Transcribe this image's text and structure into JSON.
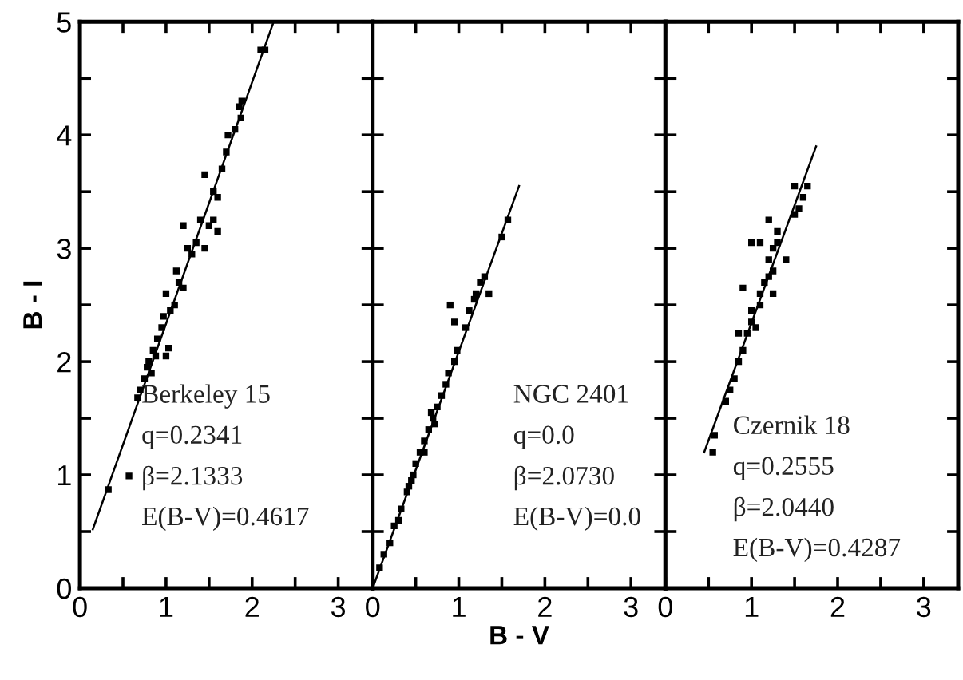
{
  "chart_data": [
    {
      "type": "scatter",
      "ylabel": "B - I",
      "xlim": [
        0,
        3.4
      ],
      "ylim": [
        0,
        5
      ],
      "xticks": [
        0,
        {
          "value": 0.5,
          "label": null
        },
        1,
        {
          "value": 1.5,
          "label": null
        },
        2,
        {
          "value": 2.5,
          "label": null
        },
        3
      ],
      "yticks": [
        0,
        {
          "value": 0.5,
          "label": null
        },
        1,
        {
          "value": 1.5,
          "label": null
        },
        2,
        {
          "value": 2.5,
          "label": null
        },
        3,
        {
          "value": 3.5,
          "label": null
        },
        4,
        {
          "value": 4.5,
          "label": null
        },
        5
      ],
      "marker": "square",
      "grid": false,
      "annotations": [
        "Berkeley 15",
        "q=0.2341",
        "β=2.1333",
        "E(B-V)=0.4617"
      ],
      "series": [
        {
          "color": "#000000",
          "x": [
            0.33,
            0.57,
            0.67,
            0.7,
            0.75,
            0.78,
            0.8,
            0.83,
            0.85,
            0.88,
            0.9,
            0.95,
            0.97,
            1.0,
            1.03,
            1.0,
            1.05,
            1.1,
            1.12,
            1.15,
            1.2,
            1.2,
            1.25,
            1.3,
            1.35,
            1.4,
            1.45,
            1.5,
            1.55,
            1.6,
            1.45,
            1.55,
            1.6,
            1.65,
            1.7,
            1.72,
            1.8,
            1.85,
            1.88,
            1.87,
            2.1,
            2.15
          ],
          "values": [
            0.87,
            0.99,
            1.68,
            1.75,
            1.85,
            1.95,
            2.0,
            1.9,
            2.1,
            2.05,
            2.2,
            2.3,
            2.4,
            2.05,
            2.12,
            2.6,
            2.45,
            2.5,
            2.8,
            2.7,
            2.65,
            3.2,
            3.0,
            2.95,
            3.05,
            3.25,
            3.0,
            3.2,
            3.25,
            3.15,
            3.65,
            3.5,
            3.45,
            3.7,
            3.85,
            4.0,
            4.05,
            4.25,
            4.3,
            4.15,
            4.75,
            4.75
          ]
        },
        {
          "type": "line",
          "marker": "none",
          "color": "#000000",
          "x": [
            0.15,
            2.25
          ],
          "values": [
            0.52,
            5.0
          ]
        }
      ]
    },
    {
      "type": "scatter",
      "xlabel": "B - V",
      "xlim": [
        0,
        3.4
      ],
      "ylim": [
        0,
        5
      ],
      "tick_labels": "x",
      "xticks": [
        0,
        {
          "value": 0.5,
          "label": null
        },
        1,
        {
          "value": 1.5,
          "label": null
        },
        2,
        {
          "value": 2.5,
          "label": null
        },
        3
      ],
      "yticks": [
        0,
        {
          "value": 0.5,
          "label": null
        },
        1,
        {
          "value": 1.5,
          "label": null
        },
        2,
        {
          "value": 2.5,
          "label": null
        },
        3,
        {
          "value": 3.5,
          "label": null
        },
        4,
        {
          "value": 4.5,
          "label": null
        },
        5
      ],
      "marker": "square",
      "grid": false,
      "annotations": [
        "NGC 2401",
        "q=0.0",
        "β=2.0730",
        "E(B-V)=0.0"
      ],
      "series": [
        {
          "color": "#000000",
          "x": [
            0.13,
            0.2,
            0.25,
            0.33,
            0.4,
            0.47,
            0.5,
            0.55,
            0.45,
            0.6,
            0.65,
            0.7,
            0.72,
            0.75,
            0.8,
            0.85,
            0.88,
            0.98,
            0.95,
            1.08,
            1.12,
            1.18,
            0.9,
            0.95,
            1.2,
            1.25,
            1.35,
            1.3,
            1.5,
            1.57,
            0.08,
            0.3,
            0.42,
            0.6,
            0.68
          ],
          "values": [
            0.3,
            0.4,
            0.55,
            0.7,
            0.85,
            1.0,
            1.1,
            1.2,
            0.95,
            1.3,
            1.4,
            1.5,
            1.45,
            1.6,
            1.7,
            1.8,
            1.9,
            2.1,
            2.0,
            2.3,
            2.45,
            2.55,
            2.5,
            2.35,
            2.6,
            2.7,
            2.6,
            2.75,
            3.1,
            3.25,
            0.18,
            0.6,
            0.9,
            1.2,
            1.55
          ]
        },
        {
          "type": "line",
          "marker": "none",
          "color": "#000000",
          "x": [
            0.0,
            1.7
          ],
          "values": [
            0.0,
            3.55
          ]
        }
      ]
    },
    {
      "type": "scatter",
      "xlim": [
        0,
        3.4
      ],
      "ylim": [
        0,
        5
      ],
      "tick_labels": "x",
      "xticks": [
        0,
        {
          "value": 0.5,
          "label": null
        },
        1,
        {
          "value": 1.5,
          "label": null
        },
        2,
        {
          "value": 2.5,
          "label": null
        },
        3
      ],
      "yticks": [
        0,
        {
          "value": 0.5,
          "label": null
        },
        1,
        {
          "value": 1.5,
          "label": null
        },
        2,
        {
          "value": 2.5,
          "label": null
        },
        3,
        {
          "value": 3.5,
          "label": null
        },
        4,
        {
          "value": 4.5,
          "label": null
        },
        5
      ],
      "marker": "square",
      "grid": false,
      "annotations": [
        "Czernik 18",
        "q=0.2555",
        "β=2.0440",
        "E(B-V)=0.4287"
      ],
      "series": [
        {
          "color": "#000000",
          "x": [
            0.55,
            0.57,
            0.7,
            0.75,
            0.8,
            0.85,
            0.9,
            0.95,
            1.0,
            1.05,
            1.0,
            1.1,
            1.1,
            1.15,
            1.2,
            1.25,
            1.2,
            1.25,
            1.3,
            1.0,
            1.1,
            1.4,
            1.3,
            1.2,
            1.5,
            1.55,
            1.6,
            1.65,
            1.5,
            0.9,
            0.85,
            1.25
          ],
          "values": [
            1.2,
            1.35,
            1.65,
            1.75,
            1.85,
            2.0,
            2.1,
            2.25,
            2.35,
            2.3,
            2.45,
            2.5,
            2.6,
            2.7,
            2.75,
            2.8,
            2.9,
            3.0,
            3.05,
            3.05,
            3.05,
            2.9,
            3.15,
            3.25,
            3.3,
            3.35,
            3.45,
            3.55,
            3.55,
            2.65,
            2.25,
            2.6
          ]
        },
        {
          "type": "line",
          "marker": "none",
          "color": "#000000",
          "x": [
            0.45,
            1.75
          ],
          "values": [
            1.2,
            3.9
          ]
        }
      ]
    }
  ]
}
